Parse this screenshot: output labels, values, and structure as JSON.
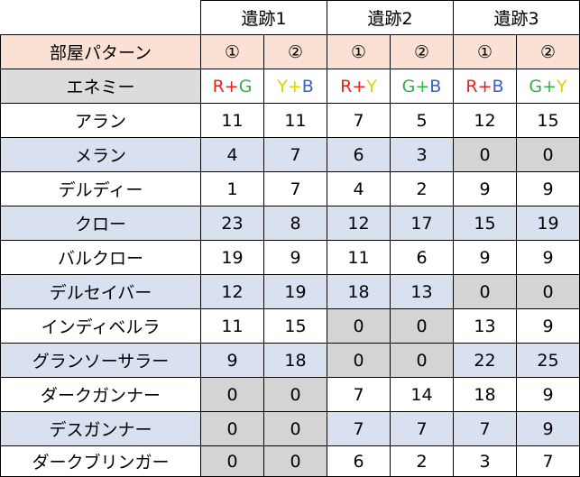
{
  "sites": [
    "遺跡1",
    "遺跡2",
    "遺跡3"
  ],
  "pattern_header": "部屋パターン",
  "patterns": [
    "①",
    "②",
    "①",
    "②",
    "①",
    "②"
  ],
  "enemy_header": "エネミー",
  "enemy_combos": [
    [
      {
        "t": "R",
        "c": "red"
      },
      {
        "t": "+",
        "c": "red"
      },
      {
        "t": "G",
        "c": "green"
      }
    ],
    [
      {
        "t": "Y",
        "c": "yellow"
      },
      {
        "t": "+",
        "c": "yellow"
      },
      {
        "t": "B",
        "c": "blue"
      }
    ],
    [
      {
        "t": "R",
        "c": "red"
      },
      {
        "t": "+",
        "c": "red"
      },
      {
        "t": "Y",
        "c": "yellow"
      }
    ],
    [
      {
        "t": "G",
        "c": "green"
      },
      {
        "t": "+",
        "c": "green"
      },
      {
        "t": "B",
        "c": "blue"
      }
    ],
    [
      {
        "t": "R",
        "c": "red"
      },
      {
        "t": "+",
        "c": "red"
      },
      {
        "t": "B",
        "c": "blue"
      }
    ],
    [
      {
        "t": "G",
        "c": "green"
      },
      {
        "t": "+",
        "c": "green"
      },
      {
        "t": "Y",
        "c": "yellow"
      }
    ]
  ],
  "rows": [
    {
      "name": "アラン",
      "values": [
        11,
        11,
        7,
        5,
        12,
        15
      ]
    },
    {
      "name": "メラン",
      "values": [
        4,
        7,
        6,
        3,
        0,
        0
      ]
    },
    {
      "name": "デルディー",
      "values": [
        1,
        7,
        4,
        2,
        9,
        9
      ]
    },
    {
      "name": "クロー",
      "values": [
        23,
        8,
        12,
        17,
        15,
        19
      ]
    },
    {
      "name": "バルクロー",
      "values": [
        19,
        9,
        11,
        6,
        9,
        9
      ]
    },
    {
      "name": "デルセイバー",
      "values": [
        12,
        19,
        18,
        13,
        0,
        0
      ]
    },
    {
      "name": "インディベルラ",
      "values": [
        11,
        15,
        0,
        0,
        13,
        9
      ]
    },
    {
      "name": "グランソーサラー",
      "values": [
        9,
        18,
        0,
        0,
        22,
        25
      ]
    },
    {
      "name": "ダークガンナー",
      "values": [
        0,
        0,
        7,
        14,
        18,
        9
      ]
    },
    {
      "name": "デスガンナー",
      "values": [
        0,
        0,
        7,
        7,
        7,
        9
      ]
    },
    {
      "name": "ダークブリンガー",
      "values": [
        0,
        0,
        6,
        2,
        3,
        7
      ]
    }
  ],
  "colors": {
    "header_peach": "#fbe1d3",
    "header_gray": "#dcdcdc",
    "row_blue": "#d9e0f0",
    "zero_shade": "#d4d4d4",
    "red": "#e8231f",
    "green": "#2fb24a",
    "yellow": "#e2d200",
    "blue": "#3662c8"
  }
}
